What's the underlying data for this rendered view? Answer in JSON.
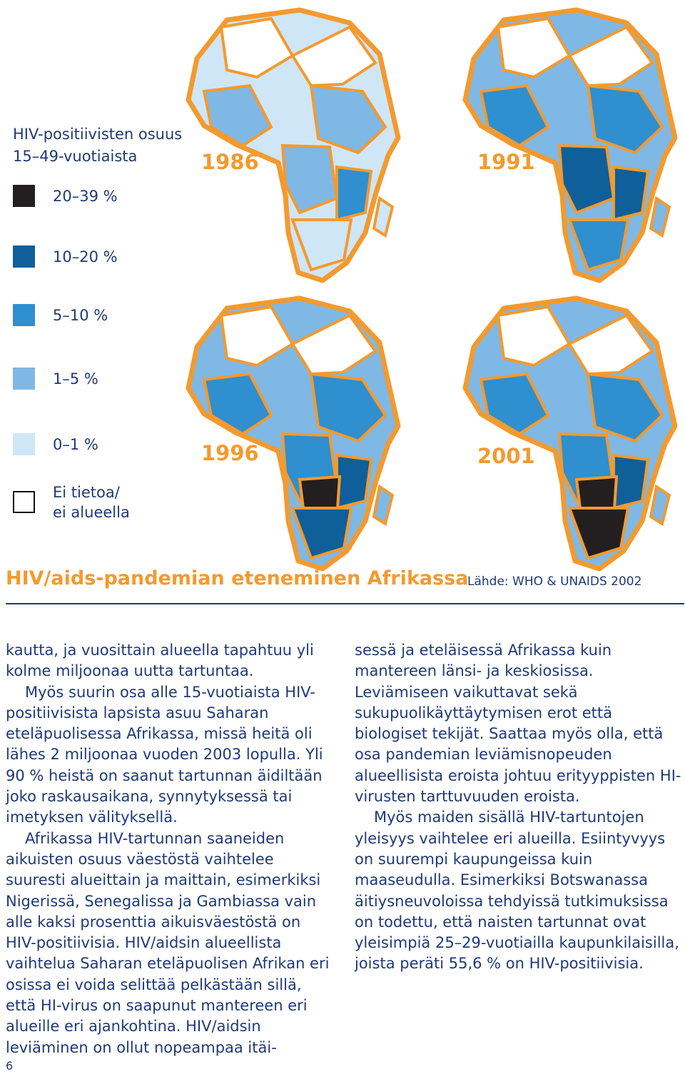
{
  "legend": {
    "title_line1": "HIV-positiivisten osuus",
    "title_line2": "15–49-vuotiaista",
    "items": [
      {
        "label": "20–39 %",
        "color": "#231f20"
      },
      {
        "label": "10–20 %",
        "color": "#0f5f9a"
      },
      {
        "label": "5–10 %",
        "color": "#2f8fcf"
      },
      {
        "label": "1–5 %",
        "color": "#7fb8e4"
      },
      {
        "label": "0–1 %",
        "color": "#cfe6f7"
      },
      {
        "label_line1": "Ei tietoa/",
        "label_line2": "ei alueella",
        "color": "#ffffff"
      }
    ]
  },
  "maps": [
    {
      "year": "1986"
    },
    {
      "year": "1991"
    },
    {
      "year": "1996"
    },
    {
      "year": "2001"
    }
  ],
  "colors": {
    "border": "#f39a2f",
    "accent": "#f39a2f",
    "text": "#1f3a78",
    "no_data": "#ffffff"
  },
  "figure": {
    "title": "HIV/aids-pandemian eteneminen Afrikassa",
    "source": "Lähde: WHO & UNAIDS 2002"
  },
  "body": {
    "col1": [
      "kautta, ja vuosittain alueella tapahtuu yli kolme miljoonaa uutta tartuntaa.",
      "Myös suurin osa alle 15-vuotiaista HIV-positiivisista lapsista asuu Saharan eteläpuolisessa Afrikassa, missä heitä oli lähes 2 miljoonaa vuoden 2003 lopulla. Yli 90 % heistä on saanut tartunnan äidiltään joko raskausaikana, synnytyksessä tai imetyksen välityksellä.",
      "Afrikassa HIV-tartunnan saaneiden aikuisten osuus väestöstä vaihtelee suuresti alueittain ja maittain, esimerkiksi Nigerissä, Senegalissa ja Gambiassa vain alle kaksi prosenttia aikuisväestöstä on HIV-positiivisia. HIV/aidsin alueellista vaihtelua Saharan eteläpuolisen Afrikan eri osissa ei voida selittää pelkästään sillä, että HI-virus on saapunut mantereen eri alueille eri ajankohtina. HIV/aidsin leviäminen on ollut nopeampaa itäi-"
    ],
    "col2": [
      "sessä ja eteläisessä Afrikassa kuin mantereen länsi- ja keskiosissa. Leviämiseen vaikuttavat sekä sukupuolikäyttäytymisen erot että biologiset tekijät. Saattaa myös olla, että osa pandemian leviämisnopeuden alueellisista eroista johtuu erityyppisten HI-virusten tarttuvuuden eroista.",
      "Myös maiden sisällä HIV-tartuntojen yleisyys vaihtelee eri alueilla. Esiintyvyys on suurempi kaupungeissa kuin maaseudulla. Esimerkiksi Botswanassa äitiysneuvoloissa tehdyissä tutkimuksissa on todettu, että naisten tartunnat ovat yleisimpiä 25–29-vuotiailla kaupunkilaisilla, joista peräti 55,6 % on HIV-positiivisia."
    ]
  },
  "page_number": "6"
}
